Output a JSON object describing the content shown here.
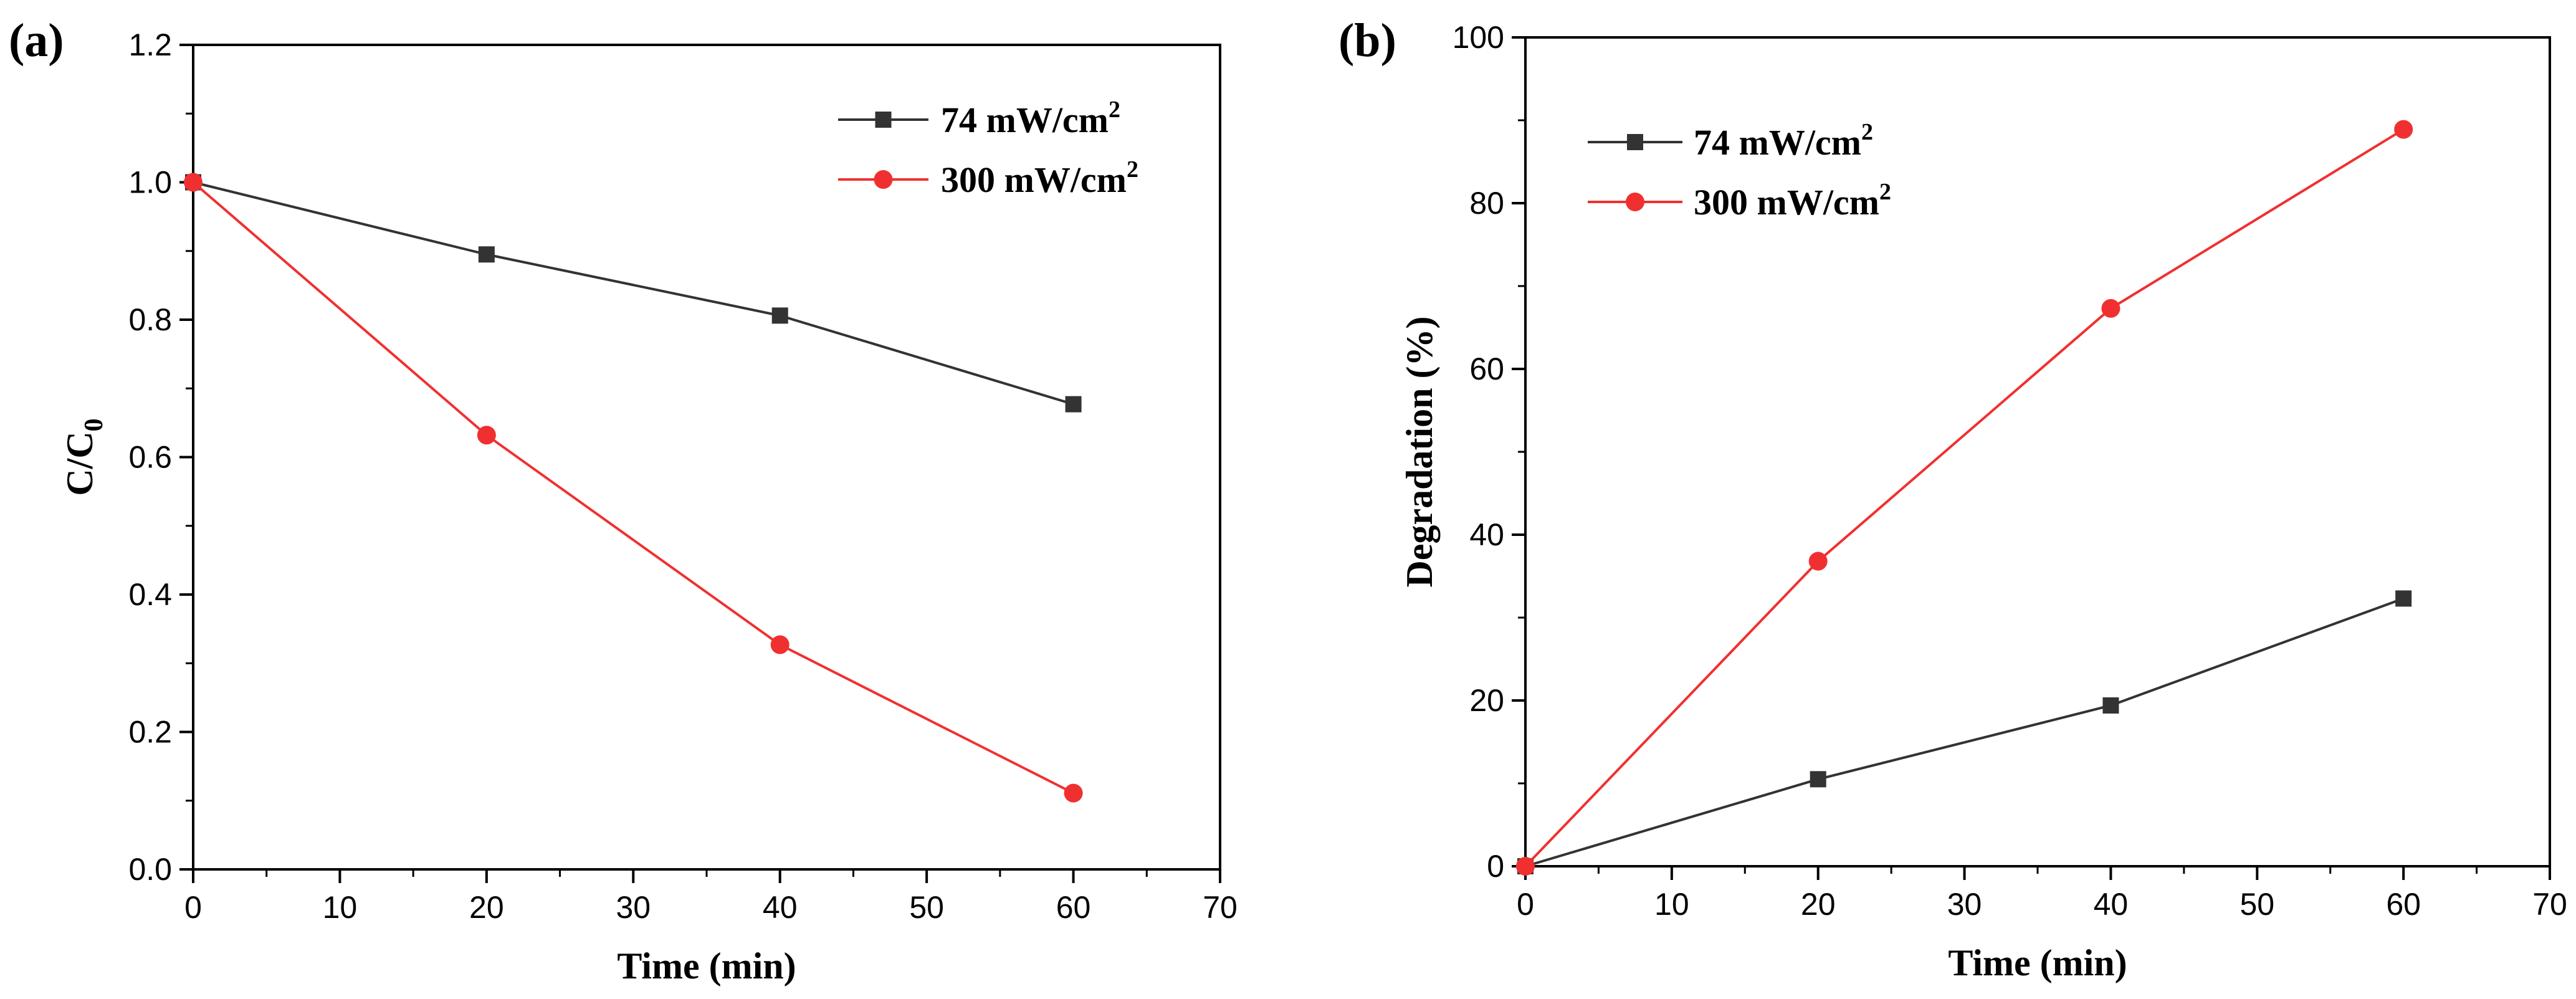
{
  "colors": {
    "series_74": "#333333",
    "series_300": "#f03030",
    "axis": "#000000"
  },
  "chart_data": [
    {
      "type": "line",
      "panel_label": "(a)",
      "xlabel": "Time (min)",
      "ylabel": "C/C",
      "ylabel_sub": "0",
      "xlim": [
        0,
        70
      ],
      "ylim": [
        0.0,
        1.2
      ],
      "xticks": [
        "0",
        "10",
        "20",
        "30",
        "40",
        "50",
        "60",
        "70"
      ],
      "yticks": [
        "0.0",
        "0.2",
        "0.4",
        "0.6",
        "0.8",
        "1.0",
        "1.2"
      ],
      "legend_position": "top-right",
      "grid": false,
      "series": [
        {
          "name": "74 mW/cm",
          "sup": "2",
          "marker": "square",
          "color": "#333333",
          "x": [
            0,
            20,
            40,
            60
          ],
          "y": [
            1.0,
            0.895,
            0.806,
            0.677
          ]
        },
        {
          "name": "300 mW/cm",
          "sup": "2",
          "marker": "circle",
          "color": "#f03030",
          "x": [
            0,
            20,
            40,
            60
          ],
          "y": [
            1.0,
            0.632,
            0.327,
            0.111
          ]
        }
      ]
    },
    {
      "type": "line",
      "panel_label": "(b)",
      "xlabel": "Time (min)",
      "ylabel": "Degradation (%)",
      "ylabel_sub": "",
      "xlim": [
        0,
        70
      ],
      "ylim": [
        0,
        100
      ],
      "xticks": [
        "0",
        "10",
        "20",
        "30",
        "40",
        "50",
        "60",
        "70"
      ],
      "yticks": [
        "0",
        "20",
        "40",
        "60",
        "80",
        "100"
      ],
      "legend_position": "top-left",
      "grid": false,
      "series": [
        {
          "name": "74 mW/cm",
          "sup": "2",
          "marker": "square",
          "color": "#333333",
          "x": [
            0,
            20,
            40,
            60
          ],
          "y": [
            0,
            10.5,
            19.4,
            32.3
          ]
        },
        {
          "name": "300 mW/cm",
          "sup": "2",
          "marker": "circle",
          "color": "#f03030",
          "x": [
            0,
            20,
            40,
            60
          ],
          "y": [
            0,
            36.8,
            67.3,
            88.9
          ]
        }
      ]
    }
  ]
}
